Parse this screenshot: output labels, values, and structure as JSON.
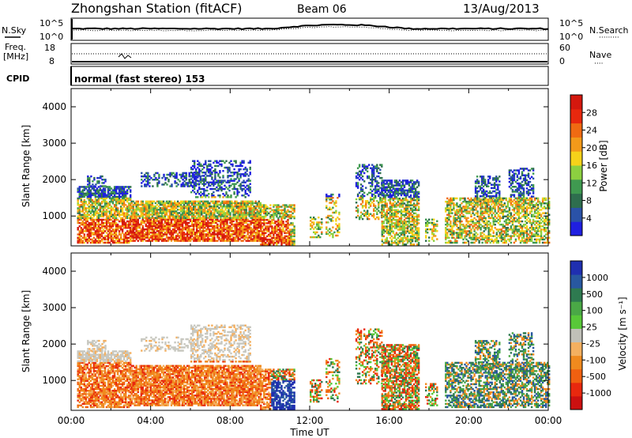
{
  "header": {
    "station": "Zhongshan Station (fitACF)",
    "beam": "Beam 06",
    "date": "13/Aug/2013"
  },
  "strip1": {
    "left_label": "N.Sky",
    "left_ticks": [
      "10^5",
      "10^0"
    ],
    "right_label": "N.Search",
    "right_ticks": [
      "10^5",
      "10^0"
    ],
    "right_legend_line": "·········"
  },
  "strip2": {
    "left_label_1": "Freq.",
    "left_label_2": "[MHz]",
    "left_ticks": [
      "18",
      "8"
    ],
    "right_label": "Nave",
    "right_ticks": [
      "60",
      "0"
    ],
    "right_legend_line": "····"
  },
  "cpid": {
    "label": "CPID",
    "value": "normal (fast stereo) 153"
  },
  "chart_data": [
    {
      "type": "heatmap",
      "panel": "power",
      "ylabel": "Slant Range [km]",
      "yticks": [
        "1000",
        "2000",
        "3000",
        "4000"
      ],
      "ylim": [
        180,
        4500
      ],
      "colorbar_label": "Power [dB]",
      "colorbar_ticks": [
        "4",
        "8",
        "12",
        "16",
        "20",
        "24",
        "28"
      ],
      "colorbar_colors": [
        "#1f1fe0",
        "#2a52a8",
        "#2e6e4e",
        "#3f9a50",
        "#8cd040",
        "#f6d21a",
        "#f39a1a",
        "#f06a12",
        "#e8280e",
        "#d4180e"
      ]
    },
    {
      "type": "heatmap",
      "panel": "velocity",
      "ylabel": "Slant Range [km]",
      "yticks": [
        "1000",
        "2000",
        "3000",
        "4000"
      ],
      "ylim": [
        180,
        4500
      ],
      "colorbar_label": "Velocity [m s⁻¹]",
      "colorbar_ticks": [
        "1000",
        "500",
        "100",
        "25",
        "-25",
        "-100",
        "-500",
        "-1000"
      ],
      "colorbar_colors": [
        "#1f2fb0",
        "#2858a0",
        "#2e7a50",
        "#4aa846",
        "#58c838",
        "#c0c0b8",
        "#f4b060",
        "#f08a1e",
        "#f06010",
        "#e8280e",
        "#cc1010"
      ]
    }
  ],
  "xaxis": {
    "ticks": [
      "00:00",
      "04:00",
      "08:00",
      "12:00",
      "16:00",
      "20:00",
      "00:00"
    ],
    "label": "Time UT"
  }
}
